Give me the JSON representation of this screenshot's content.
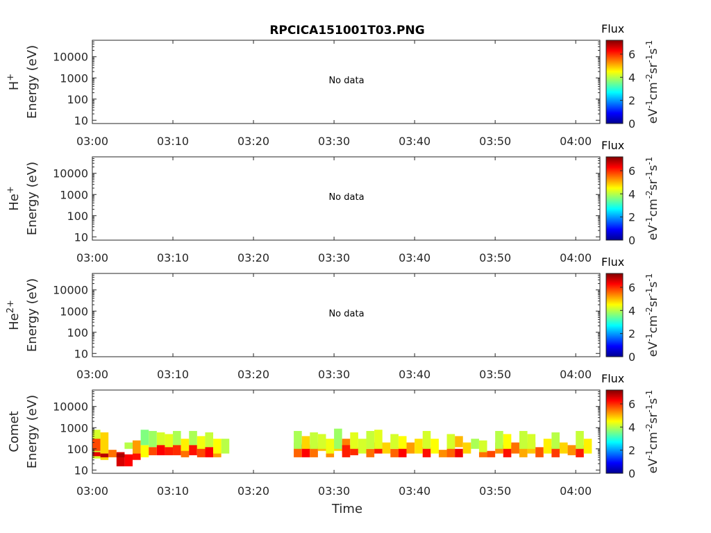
{
  "chart_data": {
    "type": "heatmap",
    "title": "RPCICA151001T03.PNG",
    "xlabel": "Time",
    "x_ticks": [
      "03:00",
      "03:10",
      "03:20",
      "03:30",
      "03:40",
      "03:50",
      "04:00"
    ],
    "x_range_minutes": [
      0,
      63
    ],
    "y_ticks": [
      "10",
      "100",
      "1000",
      "10000"
    ],
    "y_scale": "log",
    "y_range": [
      7,
      60000
    ],
    "colorbar": {
      "title": "Flux",
      "ticks": [
        "0",
        "2",
        "4",
        "6"
      ],
      "range": [
        0,
        7.2
      ],
      "colormap": "jet",
      "label_parts": [
        "eV",
        "-1",
        "cm",
        "-2",
        "sr",
        "-1",
        "s",
        "-1"
      ]
    },
    "panels": [
      {
        "species": "H",
        "species_sup": "+",
        "ylabel": "Energy (eV)",
        "no_data": "No data",
        "cells": []
      },
      {
        "species": "He",
        "species_sup": "+",
        "ylabel": "Energy (eV)",
        "no_data": "No data",
        "cells": []
      },
      {
        "species": "He",
        "species_sup": "2+",
        "ylabel": "Energy (eV)",
        "no_data": "No data",
        "cells": []
      },
      {
        "species": "Comet",
        "species_sup": "",
        "ylabel": "Energy (eV)",
        "no_data": "",
        "cells": [
          [
            0,
            1,
            35,
            800,
            4.2
          ],
          [
            0,
            1,
            80,
            300,
            5.8
          ],
          [
            0,
            1,
            45,
            70,
            6.5
          ],
          [
            1,
            2,
            30,
            600,
            4.8
          ],
          [
            1,
            2,
            40,
            60,
            6.8
          ],
          [
            2,
            3,
            40,
            90,
            5.5
          ],
          [
            3,
            4,
            15,
            70,
            6.6
          ],
          [
            3,
            4,
            40,
            60,
            6.9
          ],
          [
            4,
            5,
            15,
            55,
            6.3
          ],
          [
            4,
            5,
            100,
            200,
            4.0
          ],
          [
            5,
            6,
            60,
            250,
            5.2
          ],
          [
            5,
            6,
            30,
            60,
            6.2
          ],
          [
            6,
            7,
            40,
            150,
            4.5
          ],
          [
            6,
            7,
            150,
            800,
            3.6
          ],
          [
            7,
            8,
            120,
            700,
            3.8
          ],
          [
            7,
            8,
            50,
            120,
            5.8
          ],
          [
            8,
            9,
            90,
            600,
            4.2
          ],
          [
            8,
            9,
            50,
            150,
            6.3
          ],
          [
            9,
            10,
            80,
            500,
            4.3
          ],
          [
            9,
            10,
            50,
            120,
            6.1
          ],
          [
            10,
            11,
            80,
            700,
            3.9
          ],
          [
            10,
            11,
            50,
            150,
            6.0
          ],
          [
            11,
            12,
            60,
            300,
            4.6
          ],
          [
            11,
            12,
            40,
            80,
            5.5
          ],
          [
            12,
            13,
            80,
            700,
            3.9
          ],
          [
            12,
            13,
            50,
            150,
            6.2
          ],
          [
            13,
            14,
            60,
            400,
            4.4
          ],
          [
            13,
            14,
            40,
            100,
            5.8
          ],
          [
            14,
            15,
            80,
            600,
            4.1
          ],
          [
            14,
            15,
            40,
            120,
            6.3
          ],
          [
            15,
            16,
            40,
            90,
            5.2
          ],
          [
            15,
            16,
            60,
            300,
            4.5
          ],
          [
            16,
            17,
            60,
            300,
            4.0
          ],
          [
            25,
            26,
            40,
            200,
            5.6
          ],
          [
            25,
            26,
            100,
            700,
            3.9
          ],
          [
            26,
            27,
            40,
            160,
            6.3
          ],
          [
            26,
            27,
            100,
            400,
            4.8
          ],
          [
            27,
            28,
            40,
            130,
            5.5
          ],
          [
            27,
            28,
            100,
            600,
            4.1
          ],
          [
            28,
            29,
            80,
            200,
            5.0
          ],
          [
            28,
            29,
            100,
            500,
            4.2
          ],
          [
            29,
            30,
            40,
            100,
            5.3
          ],
          [
            29,
            30,
            60,
            300,
            4.4
          ],
          [
            30,
            31,
            80,
            250,
            4.8
          ],
          [
            30,
            31,
            100,
            900,
            3.8
          ],
          [
            31,
            32,
            60,
            300,
            5.4
          ],
          [
            31,
            32,
            40,
            150,
            6.1
          ],
          [
            32,
            33,
            50,
            120,
            6.0
          ],
          [
            32,
            33,
            100,
            600,
            4.3
          ],
          [
            33,
            34,
            60,
            300,
            4.2
          ],
          [
            34,
            35,
            40,
            100,
            5.5
          ],
          [
            34,
            35,
            100,
            700,
            4.1
          ],
          [
            35,
            36,
            60,
            200,
            6.1
          ],
          [
            35,
            36,
            100,
            800,
            4.3
          ],
          [
            36,
            37,
            60,
            200,
            4.8
          ],
          [
            37,
            38,
            40,
            100,
            5.6
          ],
          [
            37,
            38,
            100,
            500,
            4.2
          ],
          [
            38,
            39,
            40,
            120,
            6.3
          ],
          [
            38,
            39,
            100,
            400,
            4.5
          ],
          [
            39,
            40,
            60,
            200,
            5.2
          ],
          [
            40,
            41,
            60,
            300,
            4.7
          ],
          [
            41,
            42,
            40,
            120,
            6.2
          ],
          [
            41,
            42,
            100,
            700,
            4.2
          ],
          [
            42,
            43,
            60,
            300,
            4.5
          ],
          [
            43,
            44,
            40,
            90,
            5.3
          ],
          [
            44,
            45,
            40,
            120,
            5.6
          ],
          [
            44,
            45,
            100,
            500,
            4.2
          ],
          [
            45,
            46,
            40,
            100,
            6.4
          ],
          [
            45,
            46,
            120,
            400,
            5.0
          ],
          [
            46,
            47,
            60,
            200,
            4.8
          ],
          [
            47,
            48,
            100,
            300,
            3.9
          ],
          [
            48,
            49,
            40,
            70,
            5.5
          ],
          [
            48,
            49,
            70,
            250,
            4.2
          ],
          [
            49,
            50,
            40,
            80,
            5.8
          ],
          [
            50,
            51,
            60,
            200,
            5.3
          ],
          [
            50,
            51,
            100,
            700,
            4.0
          ],
          [
            51,
            52,
            40,
            150,
            6.2
          ],
          [
            51,
            52,
            100,
            500,
            4.5
          ],
          [
            52,
            53,
            60,
            200,
            5.5
          ],
          [
            53,
            54,
            40,
            150,
            5.1
          ],
          [
            53,
            54,
            100,
            700,
            4.1
          ],
          [
            54,
            55,
            60,
            200,
            4.9
          ],
          [
            54,
            55,
            100,
            500,
            4.2
          ],
          [
            55,
            56,
            40,
            120,
            5.7
          ],
          [
            56,
            57,
            60,
            300,
            4.6
          ],
          [
            57,
            58,
            40,
            130,
            5.9
          ],
          [
            57,
            58,
            100,
            600,
            4.0
          ],
          [
            58,
            59,
            60,
            200,
            4.8
          ],
          [
            59,
            60,
            50,
            150,
            5.3
          ],
          [
            60,
            61,
            40,
            150,
            6.1
          ],
          [
            60,
            61,
            100,
            700,
            4.1
          ],
          [
            61,
            62,
            60,
            300,
            4.6
          ]
        ]
      }
    ]
  }
}
